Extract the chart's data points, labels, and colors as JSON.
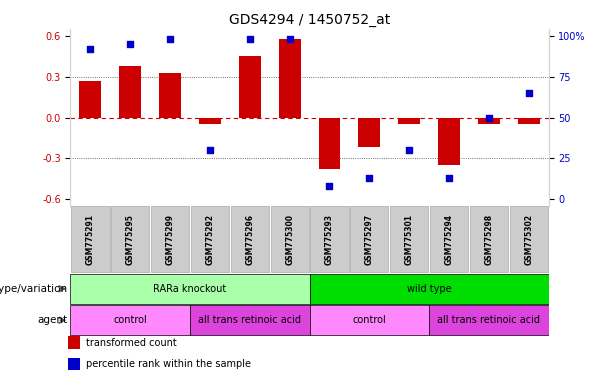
{
  "title": "GDS4294 / 1450752_at",
  "samples": [
    "GSM775291",
    "GSM775295",
    "GSM775299",
    "GSM775292",
    "GSM775296",
    "GSM775300",
    "GSM775293",
    "GSM775297",
    "GSM775301",
    "GSM775294",
    "GSM775298",
    "GSM775302"
  ],
  "bar_values": [
    0.27,
    0.38,
    0.33,
    -0.05,
    0.45,
    0.58,
    -0.38,
    -0.22,
    -0.05,
    -0.35,
    -0.05,
    -0.05
  ],
  "percentile_values": [
    92,
    95,
    98,
    30,
    98,
    98,
    8,
    13,
    30,
    13,
    50,
    65
  ],
  "bar_color": "#cc0000",
  "dot_color": "#0000cc",
  "ylim": [
    -0.65,
    0.65
  ],
  "yticks_left": [
    -0.6,
    -0.3,
    0.0,
    0.3,
    0.6
  ],
  "yticks_right": [
    0,
    25,
    50,
    75,
    100
  ],
  "zero_line_color": "#cc0000",
  "dotted_line_color": "#444444",
  "genotype_groups": [
    {
      "label": "RARa knockout",
      "start": 0,
      "end": 6,
      "color": "#aaffaa"
    },
    {
      "label": "wild type",
      "start": 6,
      "end": 12,
      "color": "#00dd00"
    }
  ],
  "agent_groups": [
    {
      "label": "control",
      "start": 0,
      "end": 3,
      "color": "#ff88ff"
    },
    {
      "label": "all trans retinoic acid",
      "start": 3,
      "end": 6,
      "color": "#dd44dd"
    },
    {
      "label": "control",
      "start": 6,
      "end": 9,
      "color": "#ff88ff"
    },
    {
      "label": "all trans retinoic acid",
      "start": 9,
      "end": 12,
      "color": "#dd44dd"
    }
  ],
  "legend_items": [
    {
      "label": "transformed count",
      "color": "#cc0000"
    },
    {
      "label": "percentile rank within the sample",
      "color": "#0000cc"
    }
  ],
  "label_genotype": "genotype/variation",
  "label_agent": "agent",
  "title_fontsize": 10,
  "tick_fontsize": 7,
  "label_fontsize": 7.5,
  "sample_fontsize": 5.5,
  "annot_fontsize": 7
}
